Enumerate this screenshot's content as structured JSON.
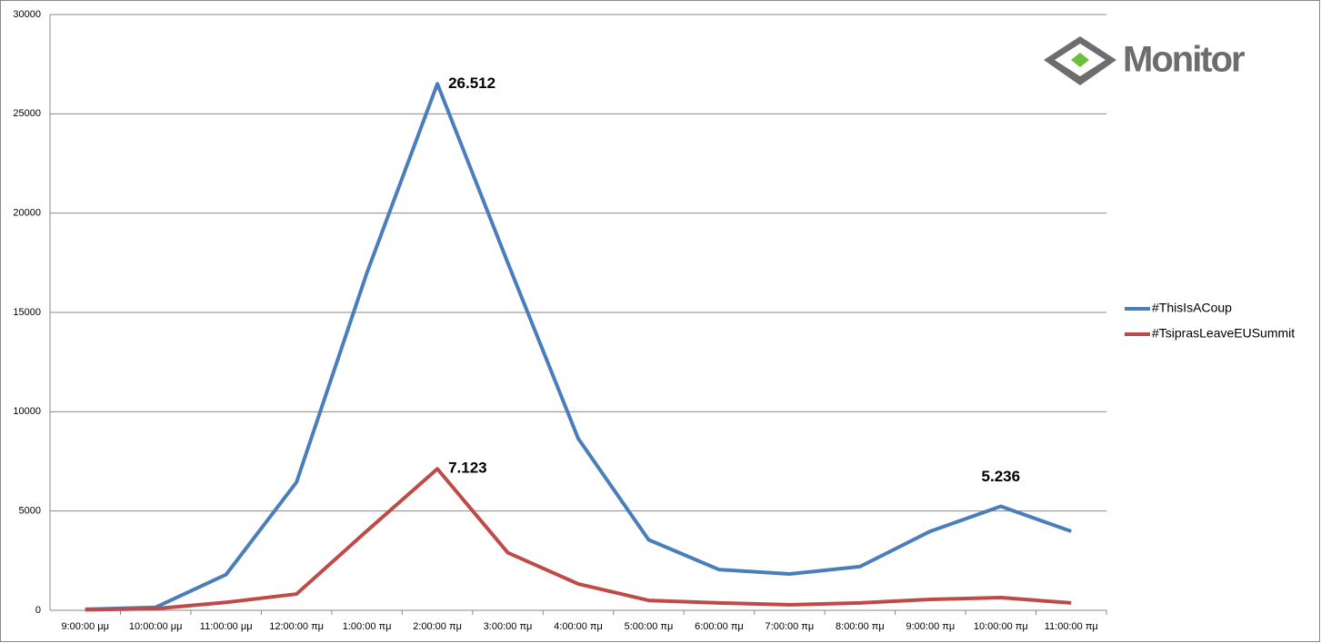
{
  "chart_data": {
    "type": "line",
    "logo": "Monitor",
    "categories": [
      "9:00:00 μμ",
      "10:00:00 μμ",
      "11:00:00 μμ",
      "12:00:00 πμ",
      "1:00:00 πμ",
      "2:00:00 πμ",
      "3:00:00 πμ",
      "4:00:00 πμ",
      "5:00:00 πμ",
      "6:00:00 πμ",
      "7:00:00 πμ",
      "8:00:00 πμ",
      "9:00:00 πμ",
      "10:00:00 πμ",
      "11:00:00 πμ"
    ],
    "series": [
      {
        "name": "#ThisIsACoup",
        "color": "#4a7ebb",
        "values": [
          50,
          150,
          1800,
          6450,
          17000,
          26512,
          17500,
          8650,
          3550,
          2050,
          1830,
          2200,
          3980,
          5236,
          3980
        ],
        "value_labels": [
          null,
          null,
          null,
          null,
          null,
          "26.512",
          null,
          null,
          null,
          null,
          null,
          null,
          null,
          "5.236",
          null
        ]
      },
      {
        "name": "#TsiprasLeaveEUSummit",
        "color": "#be4b48",
        "values": [
          30,
          80,
          400,
          820,
          4000,
          7123,
          2900,
          1330,
          500,
          370,
          280,
          370,
          550,
          640,
          370
        ],
        "value_labels": [
          null,
          null,
          null,
          null,
          null,
          "7.123",
          null,
          null,
          null,
          null,
          null,
          null,
          null,
          null,
          null
        ]
      }
    ],
    "ylim": [
      0,
      30000
    ],
    "yticks": [
      0,
      5000,
      10000,
      15000,
      20000,
      25000,
      30000
    ],
    "grid": true
  }
}
